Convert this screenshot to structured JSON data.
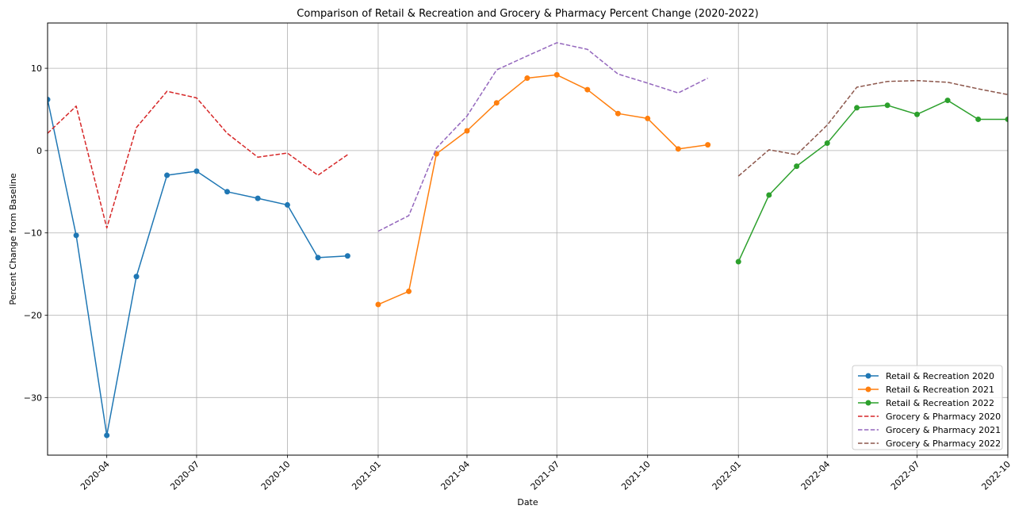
{
  "chart_data": {
    "type": "line",
    "title": "Comparison of Retail & Recreation and Grocery & Pharmacy Percent Change (2020-2022)",
    "xlabel": "Date",
    "ylabel": "Percent Change from Baseline",
    "xlim": [
      "2020-02-01",
      "2022-10-01"
    ],
    "ylim": [
      -37,
      15.5
    ],
    "y_ticks": [
      -30,
      -20,
      -10,
      0,
      10
    ],
    "y_tick_labels": [
      "−30",
      "−20",
      "−10",
      "0",
      "10"
    ],
    "x_ticks": [
      "2020-04-01",
      "2020-07-01",
      "2020-10-01",
      "2021-01-01",
      "2021-04-01",
      "2021-07-01",
      "2021-10-01",
      "2022-01-01",
      "2022-04-01",
      "2022-07-01",
      "2022-10-01"
    ],
    "x_tick_labels": [
      "2020-04",
      "2020-07",
      "2020-10",
      "2021-01",
      "2021-04",
      "2021-07",
      "2021-10",
      "2022-01",
      "2022-04",
      "2022-07",
      "2022-10"
    ],
    "grid": true,
    "legend_position": "bottom-right",
    "series": [
      {
        "name": "Retail & Recreation 2020",
        "color": "#1f77b4",
        "style": "solid",
        "marker": "circle",
        "x": [
          "2020-02-01",
          "2020-03-01",
          "2020-04-01",
          "2020-05-01",
          "2020-06-01",
          "2020-07-01",
          "2020-08-01",
          "2020-09-01",
          "2020-10-01",
          "2020-11-01",
          "2020-12-01"
        ],
        "y": [
          6.2,
          -10.3,
          -34.6,
          -15.3,
          -3.0,
          -2.5,
          -5.0,
          -5.8,
          -6.6,
          -13.0,
          -12.8
        ]
      },
      {
        "name": "Retail & Recreation 2021",
        "color": "#ff7f0e",
        "style": "solid",
        "marker": "circle",
        "x": [
          "2021-01-01",
          "2021-02-01",
          "2021-03-01",
          "2021-04-01",
          "2021-05-01",
          "2021-06-01",
          "2021-07-01",
          "2021-08-01",
          "2021-09-01",
          "2021-10-01",
          "2021-11-01",
          "2021-12-01"
        ],
        "y": [
          -18.7,
          -17.1,
          -0.4,
          2.4,
          5.8,
          8.8,
          9.2,
          7.4,
          4.5,
          3.9,
          0.2,
          0.7
        ]
      },
      {
        "name": "Retail & Recreation 2022",
        "color": "#2ca02c",
        "style": "solid",
        "marker": "circle",
        "x": [
          "2022-01-01",
          "2022-02-01",
          "2022-03-01",
          "2022-04-01",
          "2022-05-01",
          "2022-06-01",
          "2022-07-01",
          "2022-08-01",
          "2022-09-01",
          "2022-10-01"
        ],
        "y": [
          -13.5,
          -5.4,
          -1.9,
          0.9,
          5.2,
          5.5,
          4.4,
          6.1,
          3.8,
          3.8
        ]
      },
      {
        "name": "Grocery & Pharmacy 2020",
        "color": "#d62728",
        "style": "dashed",
        "marker": "none",
        "x": [
          "2020-02-01",
          "2020-03-01",
          "2020-04-01",
          "2020-05-01",
          "2020-06-01",
          "2020-07-01",
          "2020-08-01",
          "2020-09-01",
          "2020-10-01",
          "2020-11-01",
          "2020-12-01"
        ],
        "y": [
          2.1,
          5.4,
          -9.4,
          2.8,
          7.2,
          6.4,
          2.1,
          -0.8,
          -0.3,
          -3.0,
          -0.5
        ]
      },
      {
        "name": "Grocery & Pharmacy 2021",
        "color": "#9467bd",
        "style": "dashed",
        "marker": "none",
        "x": [
          "2021-01-01",
          "2021-02-01",
          "2021-03-01",
          "2021-04-01",
          "2021-05-01",
          "2021-06-01",
          "2021-07-01",
          "2021-08-01",
          "2021-09-01",
          "2021-10-01",
          "2021-11-01",
          "2021-12-01"
        ],
        "y": [
          -9.8,
          -7.9,
          0.3,
          4.2,
          9.8,
          11.5,
          13.1,
          12.3,
          9.3,
          8.2,
          7.0,
          8.8
        ]
      },
      {
        "name": "Grocery & Pharmacy 2022",
        "color": "#8c564b",
        "style": "dashed",
        "marker": "none",
        "x": [
          "2022-01-01",
          "2022-02-01",
          "2022-03-01",
          "2022-04-01",
          "2022-05-01",
          "2022-06-01",
          "2022-07-01",
          "2022-08-01",
          "2022-09-01",
          "2022-10-01"
        ],
        "y": [
          -3.1,
          0.1,
          -0.5,
          3.1,
          7.7,
          8.4,
          8.5,
          8.3,
          7.5,
          6.8
        ]
      }
    ]
  }
}
